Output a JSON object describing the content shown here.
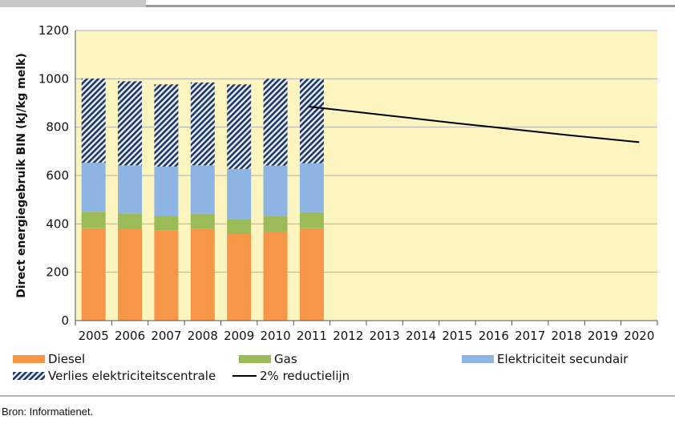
{
  "chart_data": {
    "type": "bar",
    "stacked": true,
    "title": "",
    "xlabel": "",
    "ylabel": "Direct energiegebruik BIN (kJ/kg melk)",
    "ylim": [
      0,
      1200
    ],
    "yticks": [
      0,
      200,
      400,
      600,
      800,
      1000,
      1200
    ],
    "categories": [
      "2005",
      "2006",
      "2007",
      "2008",
      "2009",
      "2010",
      "2011",
      "2012",
      "2013",
      "2014",
      "2015",
      "2016",
      "2017",
      "2018",
      "2019",
      "2020"
    ],
    "series": [
      {
        "name": "Diesel",
        "color": "#f79646",
        "values": [
          382,
          378,
          372,
          380,
          358,
          368,
          382,
          null,
          null,
          null,
          null,
          null,
          null,
          null,
          null,
          null
        ]
      },
      {
        "name": "Gas",
        "color": "#9bbb59",
        "values": [
          68,
          65,
          62,
          62,
          62,
          63,
          66,
          null,
          null,
          null,
          null,
          null,
          null,
          null,
          null,
          null
        ]
      },
      {
        "name": "Elektriciteit secundair",
        "color": "#8db4e2",
        "values": [
          203,
          199,
          203,
          200,
          207,
          210,
          203,
          null,
          null,
          null,
          null,
          null,
          null,
          null,
          null,
          null
        ]
      },
      {
        "name": "Verlies elektriciteitscentrale",
        "color": "#1f3864",
        "pattern": "hatched",
        "values": [
          348,
          348,
          340,
          343,
          350,
          359,
          349,
          null,
          null,
          null,
          null,
          null,
          null,
          null,
          null,
          null
        ]
      }
    ],
    "line": {
      "name": "2% reductielijn",
      "color": "#000000",
      "points": [
        [
          "2011",
          885
        ],
        [
          "2012",
          867
        ],
        [
          "2013",
          850
        ],
        [
          "2014",
          833
        ],
        [
          "2015",
          816
        ],
        [
          "2016",
          800
        ],
        [
          "2017",
          784
        ],
        [
          "2018",
          768
        ],
        [
          "2019",
          753
        ],
        [
          "2020",
          738
        ]
      ]
    },
    "grid": true,
    "plot_background": "#fcf5c0",
    "legend": {
      "position": "bottom",
      "entries": [
        "Diesel",
        "Gas",
        "Elektriciteit secundair",
        "Verlies elektriciteitscentrale",
        "2% reductielijn"
      ]
    }
  },
  "source_text": "Bron: Informatienet."
}
